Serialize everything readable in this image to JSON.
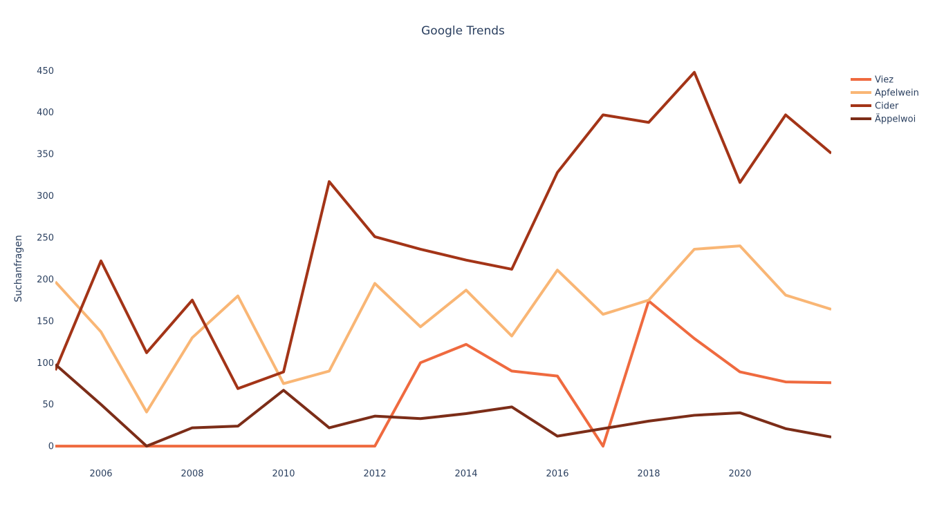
{
  "chart_data": {
    "type": "line",
    "title": "Google Trends",
    "xlabel": "",
    "ylabel": "Suchanfragen",
    "x": [
      2005,
      2006,
      2007,
      2008,
      2009,
      2010,
      2011,
      2012,
      2013,
      2014,
      2015,
      2016,
      2017,
      2018,
      2019,
      2020,
      2021,
      2022
    ],
    "xlim": [
      2005,
      2022
    ],
    "ylim": [
      -28,
      485
    ],
    "x_ticks": [
      "2006",
      "2008",
      "2010",
      "2012",
      "2014",
      "2016",
      "2018",
      "2020"
    ],
    "y_ticks": [
      "0",
      "50",
      "100",
      "150",
      "200",
      "250",
      "300",
      "350",
      "400",
      "450"
    ],
    "grid": false,
    "legend_position": "top-right",
    "series": [
      {
        "name": "Viez",
        "color": "#ef6a3f",
        "values": [
          0,
          0,
          0,
          0,
          0,
          0,
          0,
          0,
          100,
          122,
          90,
          84,
          0,
          174,
          129,
          89,
          77,
          76
        ]
      },
      {
        "name": "Apfelwein",
        "color": "#f9b675",
        "values": [
          197,
          137,
          41,
          130,
          180,
          75,
          90,
          195,
          143,
          187,
          132,
          211,
          158,
          175,
          236,
          240,
          181,
          164
        ]
      },
      {
        "name": "Cider",
        "color": "#a33417",
        "values": [
          91,
          222,
          112,
          175,
          69,
          89,
          317,
          251,
          236,
          223,
          212,
          328,
          397,
          388,
          448,
          316,
          397,
          351
        ]
      },
      {
        "name": "Äppelwoi",
        "color": "#7c2d18",
        "values": [
          98,
          50,
          0,
          22,
          24,
          67,
          22,
          36,
          33,
          39,
          47,
          12,
          21,
          30,
          37,
          40,
          21,
          11
        ]
      }
    ]
  }
}
